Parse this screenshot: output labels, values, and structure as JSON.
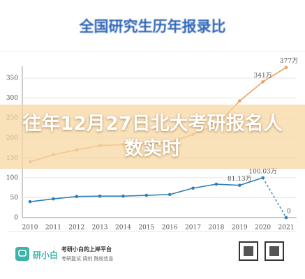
{
  "header": {
    "title": "全国研究生历年报录比"
  },
  "overlay_title": "往年12月27日北大考研报名人数实时",
  "chart_data": {
    "type": "line",
    "categories": [
      "2010",
      "2011",
      "2012",
      "2013",
      "2014",
      "2015",
      "2016",
      "2017",
      "2018",
      "2019",
      "2020",
      "2021"
    ],
    "series": [
      {
        "name": "报名人数",
        "color": "#e8a266",
        "values": [
          140,
          158,
          170,
          181,
          183,
          186,
          189,
          209,
          232,
          293,
          341,
          377
        ],
        "value_labels": [
          null,
          null,
          null,
          null,
          null,
          null,
          null,
          null,
          null,
          null,
          "341万",
          "377万"
        ]
      },
      {
        "name": "录取人数",
        "color": "#2f7fb5",
        "values": [
          40,
          47,
          53,
          54,
          54,
          56,
          58,
          74,
          84,
          81.13,
          100.03,
          0
        ],
        "value_labels": [
          null,
          null,
          null,
          null,
          null,
          null,
          null,
          null,
          null,
          "81.13万",
          "100.03万",
          "0"
        ],
        "last_segment_dashed": true
      }
    ],
    "ylim": [
      0,
      380
    ],
    "yticks": [
      0,
      50,
      100,
      150,
      200,
      250,
      300,
      350
    ],
    "grid": true
  },
  "footer": {
    "brand": "研小白",
    "slogan": "考研小白的上岸平台",
    "services": "考研复试 调剂 院校信息"
  }
}
